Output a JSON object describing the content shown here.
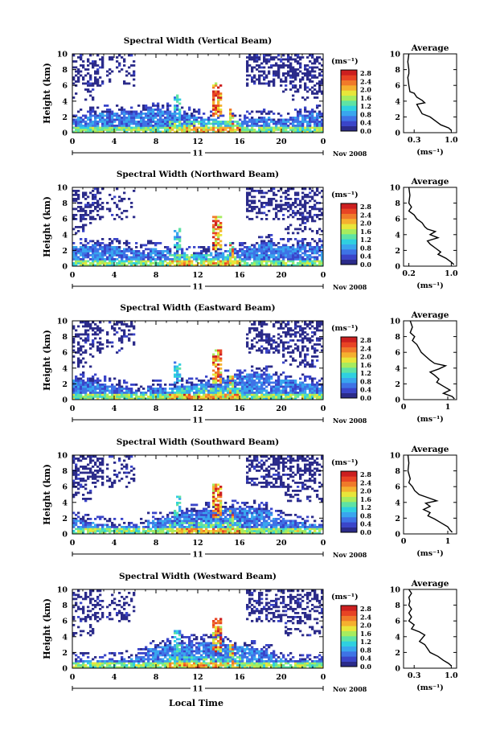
{
  "figure": {
    "xlabel": "Local Time",
    "ylabel": "Height (km)",
    "date_label": "Nov 2008",
    "day_label": "11",
    "units_label": "(ms⁻¹)",
    "avg_title": "Average",
    "avg_xlabel": "(ms⁻¹)"
  },
  "colorbar": {
    "ticks": [
      "2.8",
      "2.4",
      "2.0",
      "1.6",
      "1.2",
      "0.8",
      "0.4",
      "0.0"
    ],
    "colors": [
      "#2b2b8a",
      "#3a45c9",
      "#3e73e6",
      "#39a6ee",
      "#2fd0e0",
      "#5fe3a4",
      "#a7ec5e",
      "#e8e63a",
      "#f5b02f",
      "#f07a2a",
      "#e84424",
      "#cc1f1f"
    ]
  },
  "chart_data": [
    {
      "type": "heatmap",
      "title": "Spectral Width (Vertical Beam)",
      "x_ticks": [
        "0",
        "4",
        "8",
        "12",
        "16",
        "20",
        "0"
      ],
      "y_ticks": [
        "0",
        "2",
        "4",
        "6",
        "8",
        "10"
      ],
      "xlim": [
        0,
        24
      ],
      "ylim": [
        0,
        10
      ],
      "clim": [
        0,
        2.8
      ],
      "average": {
        "title": "Average",
        "x_ticks": [
          "0.3",
          "1.0"
        ],
        "xlim": [
          0.1,
          1.1
        ],
        "profile": [
          [
            0.2,
            10
          ],
          [
            0.18,
            9
          ],
          [
            0.2,
            8
          ],
          [
            0.2,
            7.5
          ],
          [
            0.18,
            7
          ],
          [
            0.2,
            6
          ],
          [
            0.22,
            5.2
          ],
          [
            0.3,
            5
          ],
          [
            0.35,
            4.5
          ],
          [
            0.45,
            4.1
          ],
          [
            0.5,
            3.8
          ],
          [
            0.35,
            3.6
          ],
          [
            0.4,
            3.0
          ],
          [
            0.45,
            2.4
          ],
          [
            0.6,
            2.0
          ],
          [
            0.7,
            1.5
          ],
          [
            0.8,
            1.0
          ],
          [
            0.95,
            0.6
          ],
          [
            1.0,
            0.3
          ]
        ]
      }
    },
    {
      "type": "heatmap",
      "title": "Spectral Width (Northward Beam)",
      "x_ticks": [
        "0",
        "4",
        "8",
        "12",
        "16",
        "20",
        "0"
      ],
      "y_ticks": [
        "0",
        "2",
        "4",
        "6",
        "8",
        "10"
      ],
      "xlim": [
        0,
        24
      ],
      "ylim": [
        0,
        10
      ],
      "clim": [
        0,
        2.8
      ],
      "average": {
        "title": "Average",
        "x_ticks": [
          "0.2",
          "1.0"
        ],
        "xlim": [
          0.1,
          1.1
        ],
        "profile": [
          [
            0.2,
            10
          ],
          [
            0.22,
            9
          ],
          [
            0.2,
            8
          ],
          [
            0.25,
            7.5
          ],
          [
            0.2,
            7
          ],
          [
            0.3,
            6.5
          ],
          [
            0.35,
            6
          ],
          [
            0.45,
            5.5
          ],
          [
            0.5,
            5
          ],
          [
            0.55,
            4.7
          ],
          [
            0.7,
            4.4
          ],
          [
            0.6,
            4.0
          ],
          [
            0.75,
            3.6
          ],
          [
            0.55,
            3.2
          ],
          [
            0.6,
            2.8
          ],
          [
            0.7,
            2.3
          ],
          [
            0.8,
            1.8
          ],
          [
            0.75,
            1.5
          ],
          [
            0.9,
            1.0
          ],
          [
            1.0,
            0.5
          ],
          [
            1.05,
            0.2
          ]
        ]
      }
    },
    {
      "type": "heatmap",
      "title": "Spectral Width (Eastward Beam)",
      "x_ticks": [
        "0",
        "4",
        "8",
        "12",
        "16",
        "20",
        "0"
      ],
      "y_ticks": [
        "0",
        "2",
        "4",
        "6",
        "8",
        "10"
      ],
      "xlim": [
        0,
        24
      ],
      "ylim": [
        0,
        10
      ],
      "clim": [
        0,
        2.8
      ],
      "average": {
        "title": "Average",
        "x_ticks": [
          "0",
          "1"
        ],
        "xlim": [
          0,
          1.2
        ],
        "profile": [
          [
            0.15,
            10
          ],
          [
            0.2,
            9.2
          ],
          [
            0.15,
            8.5
          ],
          [
            0.25,
            8
          ],
          [
            0.2,
            7.5
          ],
          [
            0.3,
            7
          ],
          [
            0.35,
            6.5
          ],
          [
            0.4,
            6
          ],
          [
            0.5,
            5.5
          ],
          [
            0.6,
            5
          ],
          [
            0.7,
            4.6
          ],
          [
            0.95,
            4.3
          ],
          [
            0.8,
            3.9
          ],
          [
            0.6,
            3.5
          ],
          [
            0.7,
            3.1
          ],
          [
            0.8,
            2.6
          ],
          [
            0.75,
            2.2
          ],
          [
            0.9,
            1.7
          ],
          [
            1.05,
            1.2
          ],
          [
            0.9,
            0.8
          ],
          [
            1.1,
            0.4
          ],
          [
            1.15,
            0.1
          ]
        ]
      }
    },
    {
      "type": "heatmap",
      "title": "Spectral Width (Southward Beam)",
      "x_ticks": [
        "0",
        "4",
        "8",
        "12",
        "16",
        "20",
        "0"
      ],
      "y_ticks": [
        "0",
        "2",
        "4",
        "6",
        "8",
        "10"
      ],
      "xlim": [
        0,
        24
      ],
      "ylim": [
        0,
        10
      ],
      "clim": [
        0,
        2.8
      ],
      "average": {
        "title": "Average",
        "x_ticks": [
          "0",
          "1"
        ],
        "xlim": [
          0,
          1.2
        ],
        "profile": [
          [
            0.1,
            10
          ],
          [
            0.12,
            9
          ],
          [
            0.1,
            8
          ],
          [
            0.15,
            7
          ],
          [
            0.12,
            6.5
          ],
          [
            0.2,
            6
          ],
          [
            0.25,
            5.5
          ],
          [
            0.35,
            5
          ],
          [
            0.55,
            4.6
          ],
          [
            0.75,
            4.2
          ],
          [
            0.5,
            3.9
          ],
          [
            0.6,
            3.5
          ],
          [
            0.45,
            3.1
          ],
          [
            0.6,
            2.7
          ],
          [
            0.55,
            2.3
          ],
          [
            0.7,
            1.9
          ],
          [
            0.85,
            1.4
          ],
          [
            1.0,
            0.9
          ],
          [
            1.05,
            0.5
          ],
          [
            1.1,
            0.2
          ]
        ]
      }
    },
    {
      "type": "heatmap",
      "title": "Spectral Width (Westward Beam)",
      "x_ticks": [
        "0",
        "4",
        "8",
        "12",
        "16",
        "20",
        "0"
      ],
      "y_ticks": [
        "0",
        "2",
        "4",
        "6",
        "8",
        "10"
      ],
      "xlim": [
        0,
        24
      ],
      "ylim": [
        0,
        10
      ],
      "clim": [
        0,
        2.8
      ],
      "average": {
        "title": "Average",
        "x_ticks": [
          "0.3",
          "1.0"
        ],
        "xlim": [
          0.1,
          1.1
        ],
        "profile": [
          [
            0.2,
            10
          ],
          [
            0.25,
            9.5
          ],
          [
            0.2,
            9
          ],
          [
            0.22,
            8.5
          ],
          [
            0.2,
            8
          ],
          [
            0.25,
            7.5
          ],
          [
            0.2,
            7
          ],
          [
            0.25,
            6.5
          ],
          [
            0.2,
            6
          ],
          [
            0.3,
            5.5
          ],
          [
            0.25,
            5
          ],
          [
            0.4,
            4.6
          ],
          [
            0.5,
            4.2
          ],
          [
            0.45,
            3.8
          ],
          [
            0.4,
            3.4
          ],
          [
            0.5,
            3.0
          ],
          [
            0.55,
            2.5
          ],
          [
            0.6,
            2.0
          ],
          [
            0.75,
            1.5
          ],
          [
            0.85,
            1.0
          ],
          [
            0.95,
            0.6
          ],
          [
            1.0,
            0.3
          ]
        ]
      }
    }
  ]
}
